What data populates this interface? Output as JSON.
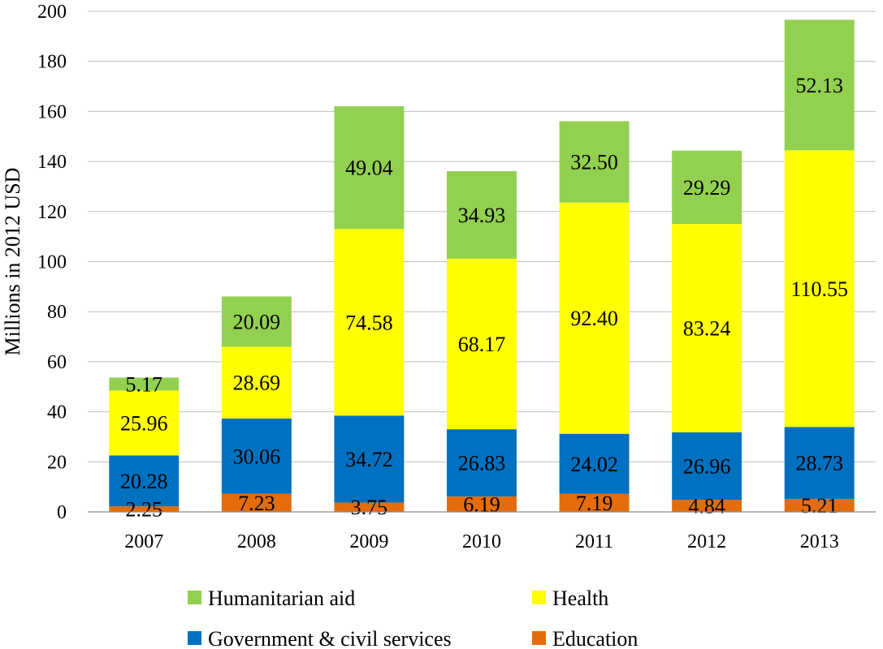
{
  "chart_data": {
    "type": "bar",
    "stacked": true,
    "title": "",
    "xlabel": "",
    "ylabel": "Millions in 2012 USD",
    "ylim": [
      0,
      200
    ],
    "yticks": [
      "0",
      "20",
      "40",
      "60",
      "80",
      "100",
      "120",
      "140",
      "160",
      "180",
      "200"
    ],
    "grid": true,
    "legend_position": "bottom",
    "categories": [
      "2007",
      "2008",
      "2009",
      "2010",
      "2011",
      "2012",
      "2013"
    ],
    "series": [
      {
        "name": "Education",
        "color": "#e46c0a",
        "values": [
          2.25,
          7.23,
          3.75,
          6.19,
          7.19,
          4.84,
          5.21
        ],
        "labels": [
          "2.25",
          "7.23",
          "3.75",
          "6.19",
          "7.19",
          "4.84",
          "5.21"
        ]
      },
      {
        "name": "Government & civil services",
        "color": "#0070c0",
        "values": [
          20.28,
          30.06,
          34.72,
          26.83,
          24.02,
          26.96,
          28.73
        ],
        "labels": [
          "20.28",
          "30.06",
          "34.72",
          "26.83",
          "24.02",
          "26.96",
          "28.73"
        ]
      },
      {
        "name": "Health",
        "color": "#ffff00",
        "values": [
          25.96,
          28.69,
          74.58,
          68.17,
          92.4,
          83.24,
          110.55
        ],
        "labels": [
          "25.96",
          "28.69",
          "74.58",
          "68.17",
          "92.40",
          "83.24",
          "110.55"
        ]
      },
      {
        "name": "Humanitarian aid",
        "color": "#92d050",
        "values": [
          5.17,
          20.09,
          49.04,
          34.93,
          32.5,
          29.29,
          52.13
        ],
        "labels": [
          "5.17",
          "20.09",
          "49.04",
          "34.93",
          "32.50",
          "29.29",
          "52.13"
        ]
      }
    ],
    "legend_order": [
      "Humanitarian aid",
      "Health",
      "Government & civil services",
      "Education"
    ]
  }
}
